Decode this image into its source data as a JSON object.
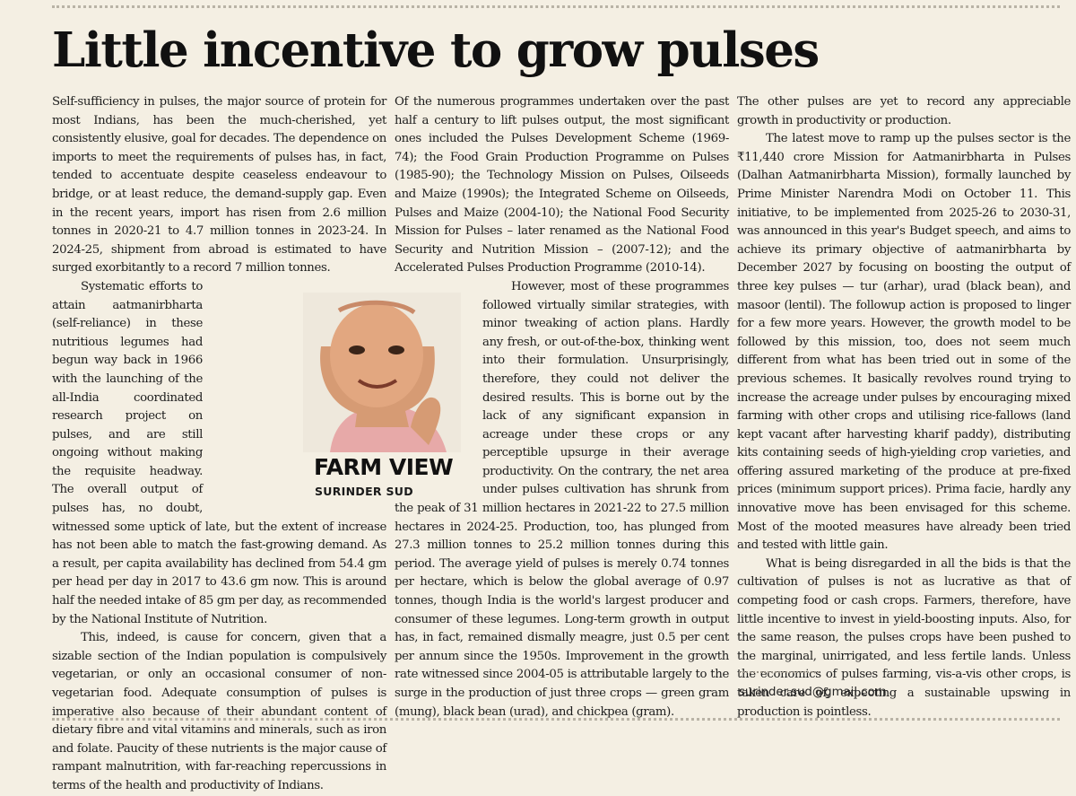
{
  "headline": "Little incentive to grow pulses",
  "column_label": "FARM VIEW",
  "author": "SURINDER SUD",
  "email": "surinder.sud@gmail.com",
  "col1": [
    "Self-sufficiency in pulses, the major source of protein for most Indians, has been the much-cherished, yet consistently elusive, goal for decades. The dependence on imports to meet the requirements of pulses has, in fact, tended to accentuate despite ceaseless endeavour to bridge, or at least reduce, the demand-supply gap. Even in the recent years, import has risen from 2.6 million tonnes in 2020-21 to 4.7 million tonnes in 2023-24. In 2024-25, shipment from abroad is estimated to have surged exorbitantly to a record 7 million tonnes.",
    "Systematic efforts to attain aatmanirbharta (self-reliance) in these nutritious legumes had begun way back in 1966 with the launching of the all-India coordinated research project on pulses, and are still ongoing without making the requisite headway. The overall output of pulses has, no doubt, witnessed some uptick of late, but the extent of increase has not been able to match the fast-growing demand. As a result, per capita availability has declined from 54.4 gm per head per day in 2017 to 43.6 gm now. This is around half the needed intake of 85 gm per day, as recommended by the National Institute of Nutrition.",
    "This, indeed, is cause for concern, given that a sizable section of the Indian population is compulsively vegetarian, or only an occasional consumer of non-vegetarian food. Adequate consumption of pulses is imperative also because of their abundant content of dietary fibre and vital vitamins and minerals, such as iron and folate. Paucity of these nutrients is the major cause of rampant malnutrition, with far-reaching repercussions in terms of the health and productivity of Indians."
  ],
  "col2": [
    "Of the numerous programmes undertaken over the past half a century to lift pulses output, the most significant ones included the Pulses Development Scheme (1969-74); the Food Grain Production Programme on Pulses (1985-90); the Technology Mission on Pulses, Oilseeds and Maize (1990s); the Integrated Scheme on Oilseeds, Pulses and Maize (2004-10); the National Food Security Mission for Pulses – later renamed as the National Food Security and Nutrition Mission – (2007-12); and the Accelerated Pulses Production Programme (2010-14).",
    "However, most of these programmes followed virtually similar strategies, with minor tweaking of action plans. Hardly any fresh, or out-of-the-box, thinking went into their formulation. Unsurprisingly, therefore, they could not deliver the desired results. This is borne out by the lack of any significant expansion in acreage under these crops or any perceptible upsurge in their average productivity. On the contrary, the net area under pulses cultivation has shrunk from the peak of 31 million hectares in 2021-22 to 27.5 million hectares in 2024-25. Production, too, has plunged from 27.3 million tonnes to 25.2 million tonnes during this period. The average yield of pulses is merely 0.74 tonnes per hectare, which is below the global average of 0.97 tonnes, though India is the world's largest producer and consumer of these legumes. Long-term growth in output has, in fact, remained dismally meagre, just 0.5 per cent per annum since the 1950s. Improvement in the growth rate witnessed since 2004-05 is attributable largely to the surge in the production of just three crops — green gram (mung), black bean (urad), and chickpea (gram)."
  ],
  "col3": [
    "The other pulses are yet to record any appreciable growth in productivity or production.",
    "The latest move to ramp up the pulses sector is the ₹11,440 crore Mission for Aatmanirbharta in Pulses (Dalhan Aatmanirbharta Mission), formally launched by Prime Minister Narendra Modi on October 11. This initiative, to be implemented from 2025-26 to 2030-31, was announced in this year's Budget speech, and aims to achieve its primary objective of aatmanirbharta by December 2027 by focusing on boosting the output of three key pulses — tur (arhar), urad (black bean), and masoor (lentil). The followup action is proposed to linger for a few more years. However, the growth model to be followed by this mission, too, does not seem much different from what has been tried out in some of the previous schemes. It basically revolves round trying to increase the acreage under pulses by encouraging mixed farming with other crops and utilising rice-fallows (land kept vacant after harvesting kharif paddy), distributing kits containing seeds of high-yielding crop varieties, and offering assured marketing of the produce at pre-fixed prices (minimum support prices). Prima facie, hardly any innovative move has been envisaged for this scheme. Most of the mooted measures have already been tried and tested with little gain.",
    "What is being disregarded in all the bids is that the cultivation of pulses is not as lucrative as that of competing food or cash crops. Farmers, therefore, have little incentive to invest in yield-boosting inputs. Also, for the same reason, the pulses crops have been pushed to the marginal, unirrigated, and less fertile lands. Unless the economics of pulses farming, vis-a-vis other crops, is taken care of, expecting a sustainable upswing in production is pointless."
  ]
}
